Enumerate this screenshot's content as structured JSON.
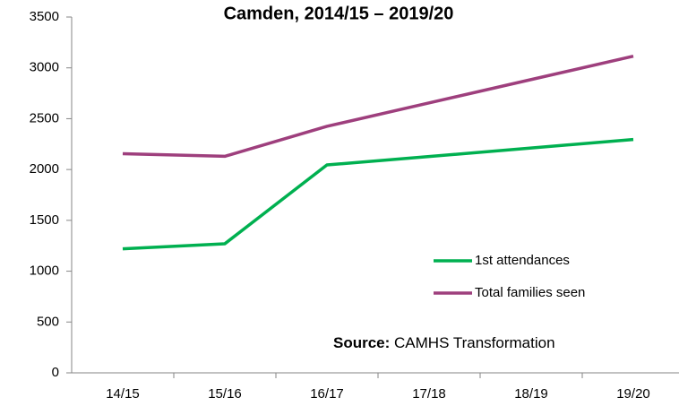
{
  "chart_data": {
    "type": "line",
    "title": "Camden, 2014/15 – 2019/20",
    "categories": [
      "14/15",
      "15/16",
      "16/17",
      "17/18",
      "18/19",
      "19/20"
    ],
    "series": [
      {
        "name": "1st attendances",
        "color": "#00b050",
        "values": [
          1220,
          1270,
          2045,
          2128,
          2212,
          2295
        ]
      },
      {
        "name": "Total families seen",
        "color": "#9e3f7d",
        "values": [
          2155,
          2130,
          2425,
          2655,
          2885,
          3115
        ]
      }
    ],
    "ylim": [
      0,
      3500
    ],
    "yticks": [
      0,
      500,
      1000,
      1500,
      2000,
      2500,
      3000,
      3500
    ],
    "grid": false,
    "annotation": {
      "label": "Source:",
      "text": "CAMHS Transformation"
    }
  }
}
